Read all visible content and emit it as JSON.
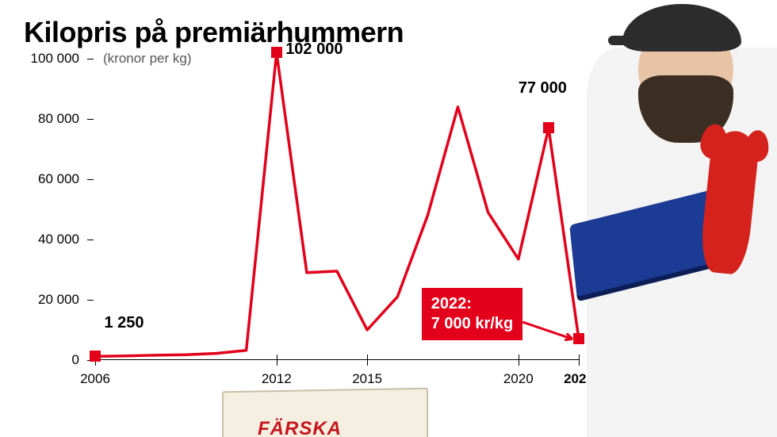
{
  "title": "Kilopris på premiärhummern",
  "chart": {
    "type": "line",
    "unit_label": "(kronor per kg)",
    "background_color": "#ffffff",
    "line_color": "#e2001a",
    "line_width": 3.5,
    "marker_color": "#e2001a",
    "marker_shape": "square",
    "marker_size": 14,
    "axis_color": "#000000",
    "label_fontsize": 17,
    "title_fontsize": 36,
    "callout_fontsize": 20,
    "ylim": [
      0,
      100000
    ],
    "ytick_step": 20000,
    "ytick_labels": [
      "0",
      "20 000",
      "40 000",
      "60 000",
      "80 000",
      "100 000"
    ],
    "x_range": [
      2006,
      2022
    ],
    "x_ticks": [
      2006,
      2012,
      2015,
      2020,
      2022
    ],
    "x_tick_bold": [
      2022
    ],
    "years": [
      2006,
      2007,
      2008,
      2009,
      2010,
      2011,
      2012,
      2013,
      2014,
      2015,
      2016,
      2017,
      2018,
      2019,
      2020,
      2021,
      2022
    ],
    "values": [
      1250,
      1400,
      1600,
      1800,
      2200,
      3200,
      102000,
      29000,
      29500,
      10000,
      21000,
      48000,
      84000,
      49000,
      33500,
      77000,
      7000
    ],
    "markers": [
      {
        "year": 2006,
        "value": 1250
      },
      {
        "year": 2012,
        "value": 102000
      },
      {
        "year": 2021,
        "value": 77000
      },
      {
        "year": 2022,
        "value": 7000
      }
    ],
    "callouts": [
      {
        "text": "1 250",
        "year": 2006.3,
        "value": 12000,
        "anchor": "left"
      },
      {
        "text": "102 000",
        "year": 2012.3,
        "value": 103000,
        "anchor": "left"
      },
      {
        "text": "77 000",
        "year": 2020.0,
        "value": 90000,
        "anchor": "left"
      }
    ],
    "badge": {
      "lines": [
        "2022:",
        "7 000 kr/kg"
      ],
      "bg": "#e2001a",
      "fg": "#ffffff",
      "year": 2016.8,
      "value": 16000,
      "arrow_to": {
        "year": 2022,
        "value": 7000
      }
    }
  },
  "decor": {
    "crate_text": "FÄRSKA",
    "crate_text_color": "#c6161d",
    "crate_fill": "#f5efe2",
    "crate_border": "#c9bfa8",
    "person_coat": "#f3f3f3",
    "person_skin": "#e8c4a6",
    "person_beard": "#3c2e22",
    "person_cap": "#2c2c2c",
    "lectern_color": "#1c3b95",
    "lobster_color": "#d6221c"
  }
}
